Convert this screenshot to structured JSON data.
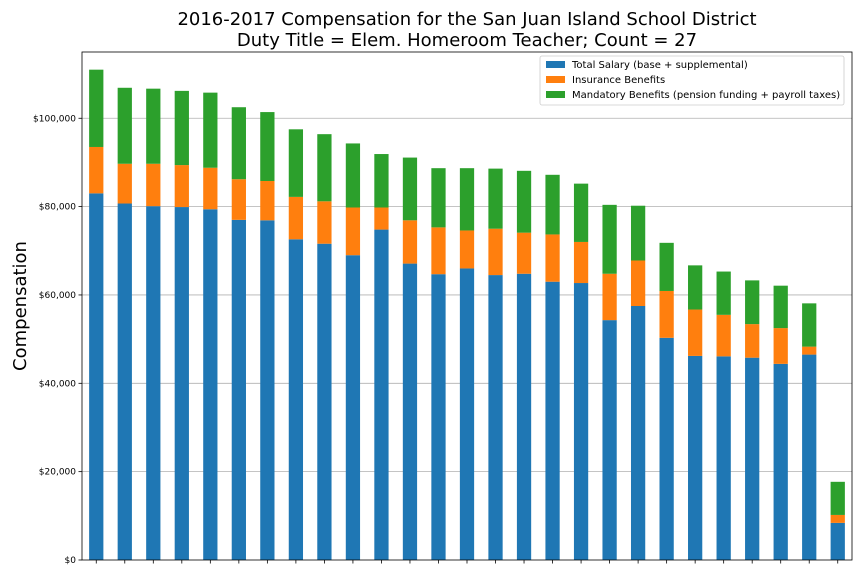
{
  "chart_data": {
    "type": "bar",
    "stacked": true,
    "title": [
      "2016-2017 Compensation for the San Juan Island School District",
      "Duty Title = Elem. Homeroom Teacher; Count = 27"
    ],
    "xlabel": "",
    "ylabel": "Compensation",
    "ylim": [
      0,
      115000
    ],
    "yticks": [
      0,
      20000,
      40000,
      60000,
      80000,
      100000
    ],
    "ytick_labels": [
      "$0",
      "$20,000",
      "$40,000",
      "$60,000",
      "$80,000",
      "$100,000"
    ],
    "grid": "horizontal",
    "legend_position": "top-right",
    "series": [
      {
        "name": "Total Salary (base + supplemental)",
        "color": "#1f77b4",
        "values": [
          83000,
          80700,
          80100,
          79900,
          79400,
          77000,
          76900,
          72600,
          71600,
          69000,
          74800,
          67100,
          64700,
          66000,
          64500,
          64800,
          63000,
          62700,
          54300,
          57500,
          50300,
          46200,
          46100,
          45800,
          44400,
          46500,
          8400
        ]
      },
      {
        "name": "Insurance Benefits",
        "color": "#ff7f0e",
        "values": [
          10500,
          9000,
          9600,
          9500,
          9400,
          9200,
          8900,
          9600,
          9600,
          10800,
          5000,
          9800,
          10600,
          8600,
          10500,
          9300,
          10700,
          9300,
          10500,
          10300,
          10600,
          10500,
          9400,
          7600,
          8100,
          1800,
          1800
        ]
      },
      {
        "name": "Mandatory Benefits (pension funding + payroll taxes)",
        "color": "#2ca02c",
        "values": [
          17500,
          17200,
          17000,
          16800,
          17000,
          16300,
          15600,
          15300,
          15200,
          14500,
          12100,
          14200,
          13400,
          14100,
          13600,
          14000,
          13500,
          13200,
          15600,
          12400,
          10900,
          10000,
          9800,
          9900,
          9600,
          9800,
          7500
        ]
      }
    ]
  }
}
